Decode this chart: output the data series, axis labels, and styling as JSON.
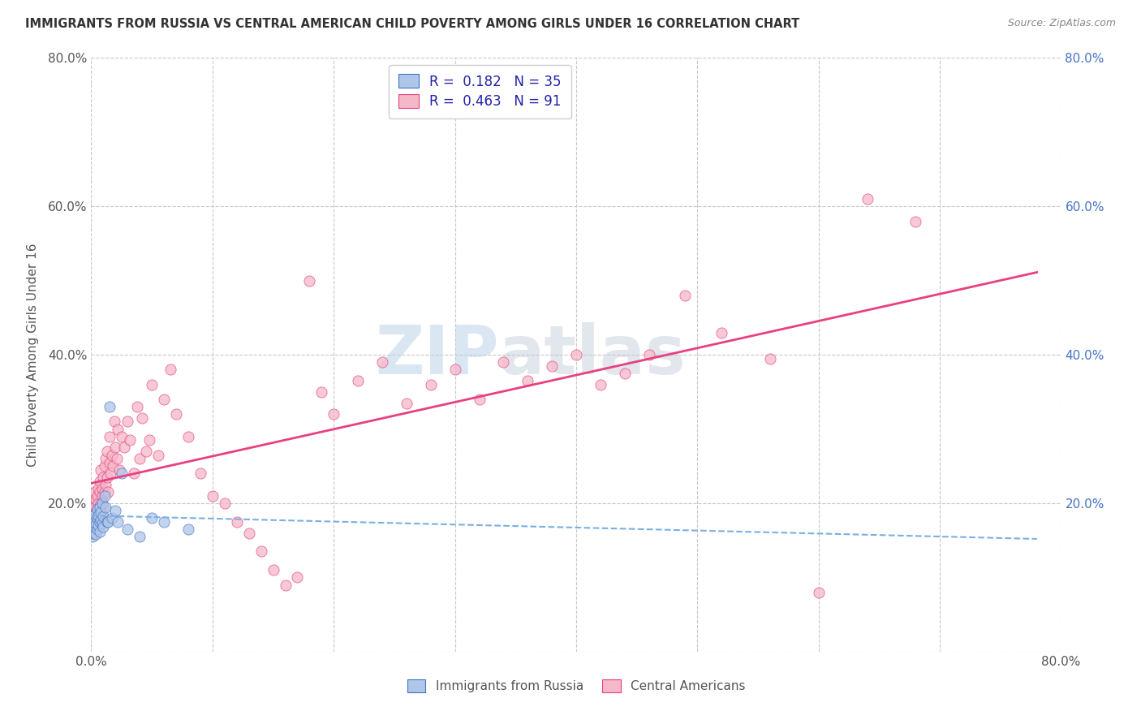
{
  "title": "IMMIGRANTS FROM RUSSIA VS CENTRAL AMERICAN CHILD POVERTY AMONG GIRLS UNDER 16 CORRELATION CHART",
  "source": "Source: ZipAtlas.com",
  "ylabel": "Child Poverty Among Girls Under 16",
  "watermark_zip": "ZIP",
  "watermark_atlas": "atlas",
  "legend_russia": "Immigrants from Russia",
  "legend_central": "Central Americans",
  "r_russia": 0.182,
  "n_russia": 35,
  "r_central": 0.463,
  "n_central": 91,
  "xlim": [
    0.0,
    0.8
  ],
  "ylim": [
    0.0,
    0.8
  ],
  "xticks": [
    0.0,
    0.1,
    0.2,
    0.3,
    0.4,
    0.5,
    0.6,
    0.7,
    0.8
  ],
  "yticks": [
    0.0,
    0.2,
    0.4,
    0.6,
    0.8
  ],
  "color_russia": "#aec6e8",
  "color_central": "#f4b8c8",
  "trendline_russia": "#4472c4",
  "trendline_central": "#e84080",
  "trendline_russia_dashed": "#7ab0e0",
  "background": "#ffffff",
  "grid_color": "#c8c8c8",
  "russia_x": [
    0.001,
    0.002,
    0.002,
    0.003,
    0.003,
    0.004,
    0.004,
    0.005,
    0.005,
    0.005,
    0.006,
    0.006,
    0.007,
    0.007,
    0.007,
    0.008,
    0.008,
    0.009,
    0.009,
    0.01,
    0.01,
    0.011,
    0.012,
    0.013,
    0.014,
    0.015,
    0.017,
    0.02,
    0.022,
    0.025,
    0.03,
    0.04,
    0.05,
    0.06,
    0.08
  ],
  "russia_y": [
    0.155,
    0.175,
    0.16,
    0.185,
    0.168,
    0.172,
    0.158,
    0.18,
    0.165,
    0.192,
    0.17,
    0.183,
    0.175,
    0.162,
    0.195,
    0.178,
    0.188,
    0.173,
    0.2,
    0.182,
    0.168,
    0.21,
    0.195,
    0.175,
    0.175,
    0.33,
    0.18,
    0.19,
    0.175,
    0.24,
    0.165,
    0.155,
    0.18,
    0.175,
    0.165
  ],
  "central_x": [
    0.001,
    0.001,
    0.002,
    0.002,
    0.002,
    0.003,
    0.003,
    0.003,
    0.004,
    0.004,
    0.004,
    0.005,
    0.005,
    0.005,
    0.006,
    0.006,
    0.006,
    0.007,
    0.007,
    0.007,
    0.008,
    0.008,
    0.008,
    0.009,
    0.009,
    0.01,
    0.01,
    0.011,
    0.011,
    0.012,
    0.012,
    0.013,
    0.013,
    0.014,
    0.015,
    0.015,
    0.016,
    0.017,
    0.018,
    0.019,
    0.02,
    0.021,
    0.022,
    0.023,
    0.025,
    0.027,
    0.03,
    0.032,
    0.035,
    0.038,
    0.04,
    0.042,
    0.045,
    0.048,
    0.05,
    0.055,
    0.06,
    0.065,
    0.07,
    0.08,
    0.09,
    0.1,
    0.11,
    0.12,
    0.13,
    0.14,
    0.15,
    0.16,
    0.17,
    0.18,
    0.19,
    0.2,
    0.22,
    0.24,
    0.26,
    0.28,
    0.3,
    0.32,
    0.34,
    0.36,
    0.38,
    0.4,
    0.42,
    0.44,
    0.46,
    0.49,
    0.52,
    0.56,
    0.6,
    0.64,
    0.68
  ],
  "central_y": [
    0.195,
    0.175,
    0.185,
    0.2,
    0.17,
    0.18,
    0.215,
    0.195,
    0.188,
    0.205,
    0.175,
    0.192,
    0.21,
    0.178,
    0.2,
    0.22,
    0.185,
    0.215,
    0.195,
    0.23,
    0.2,
    0.245,
    0.185,
    0.22,
    0.21,
    0.235,
    0.195,
    0.25,
    0.215,
    0.26,
    0.225,
    0.235,
    0.27,
    0.215,
    0.255,
    0.29,
    0.24,
    0.265,
    0.25,
    0.31,
    0.275,
    0.26,
    0.3,
    0.245,
    0.29,
    0.275,
    0.31,
    0.285,
    0.24,
    0.33,
    0.26,
    0.315,
    0.27,
    0.285,
    0.36,
    0.265,
    0.34,
    0.38,
    0.32,
    0.29,
    0.24,
    0.21,
    0.2,
    0.175,
    0.16,
    0.135,
    0.11,
    0.09,
    0.1,
    0.5,
    0.35,
    0.32,
    0.365,
    0.39,
    0.335,
    0.36,
    0.38,
    0.34,
    0.39,
    0.365,
    0.385,
    0.4,
    0.36,
    0.375,
    0.4,
    0.48,
    0.43,
    0.395,
    0.08,
    0.61,
    0.58
  ]
}
